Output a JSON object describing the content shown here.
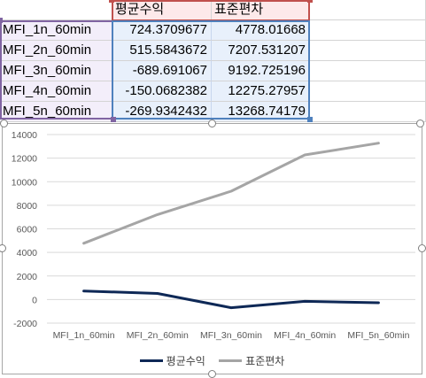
{
  "sheet": {
    "headers": [
      "평균수익",
      "표준편차"
    ],
    "rows": [
      {
        "label": "MFI_1n_60min",
        "mean": "724.3709677",
        "std": "4778.01668"
      },
      {
        "label": "MFI_2n_60min",
        "mean": "515.5843672",
        "std": "7207.531207"
      },
      {
        "label": "MFI_3n_60min",
        "mean": "-689.691067",
        "std": "9192.725196"
      },
      {
        "label": "MFI_4n_60min",
        "mean": "-150.0682382",
        "std": "12275.27957"
      },
      {
        "label": "MFI_5n_60min",
        "mean": "-269.9342432",
        "std": "13268.74179"
      }
    ]
  },
  "chart_data": {
    "type": "line",
    "categories": [
      "MFI_1n_60min",
      "MFI_2n_60min",
      "MFI_3n_60min",
      "MFI_4n_60min",
      "MFI_5n_60min"
    ],
    "series": [
      {
        "name": "평균수익",
        "values": [
          724.3709677,
          515.5843672,
          -689.691067,
          -150.0682382,
          -269.9342432
        ],
        "color": "#0e2856"
      },
      {
        "name": "표준편차",
        "values": [
          4778.01668,
          7207.531207,
          9192.725196,
          12275.27957,
          13268.74179
        ],
        "color": "#a5a5a5"
      }
    ],
    "ylim": [
      -2000,
      14000
    ],
    "yticks": [
      "-2000",
      "0",
      "2000",
      "4000",
      "6000",
      "8000",
      "10000",
      "12000",
      "14000"
    ],
    "grid": true,
    "legend_position": "bottom"
  }
}
